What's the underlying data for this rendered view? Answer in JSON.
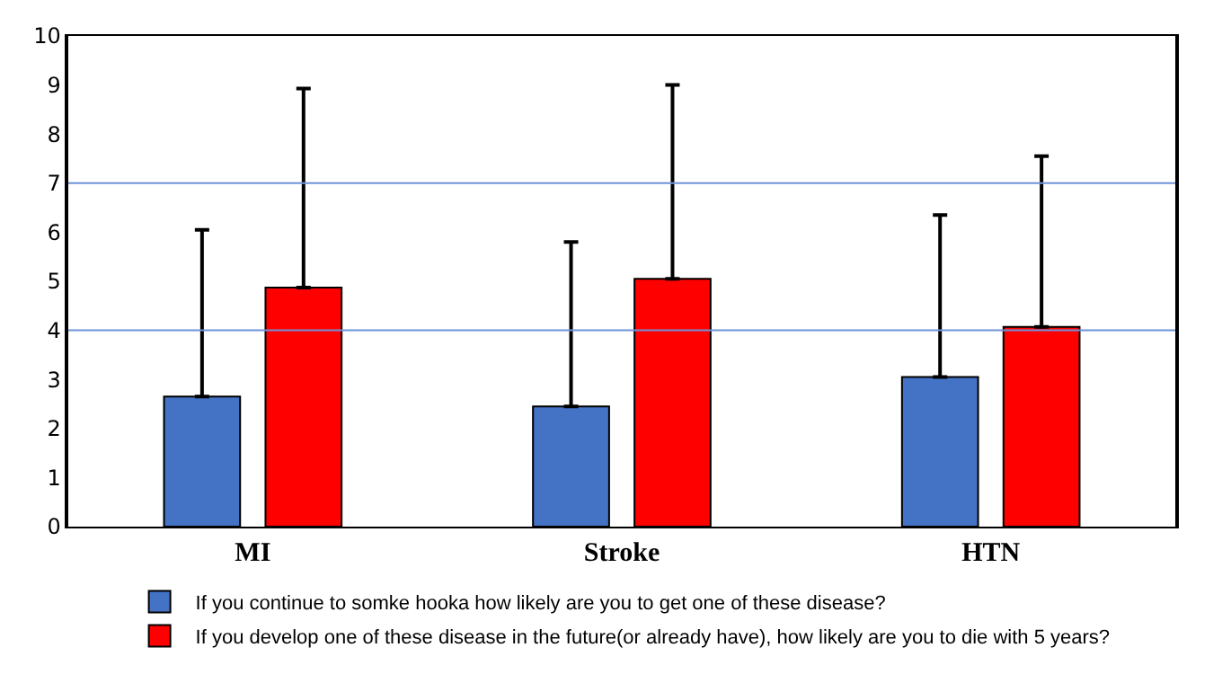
{
  "chart_data": {
    "type": "bar",
    "categories": [
      "MI",
      "Stroke",
      "HTN"
    ],
    "series": [
      {
        "name": "If you continue to somke hooka how likely are you to get one of these disease?",
        "color": "#4472c4",
        "values": [
          2.65,
          2.45,
          3.05
        ],
        "errors": [
          [
            2.65,
            6.05
          ],
          [
            2.45,
            5.8
          ],
          [
            3.05,
            6.35
          ]
        ]
      },
      {
        "name": "If you develop one of these disease in the future(or already have), how likely are you to die with 5 years?",
        "color": "#ff0000",
        "values": [
          4.87,
          5.05,
          4.07
        ],
        "errors": [
          [
            4.87,
            8.93
          ],
          [
            5.05,
            9.0
          ],
          [
            4.07,
            7.55
          ]
        ]
      }
    ],
    "ylim": [
      0,
      10
    ],
    "yticks": [
      0,
      1,
      2,
      3,
      4,
      5,
      6,
      7,
      8,
      9,
      10
    ],
    "grid": false,
    "legend": "bottom",
    "ref_lines": [
      {
        "axis": "y",
        "value": 4,
        "color": "#6f93d8"
      },
      {
        "axis": "y",
        "value": 7,
        "color": "#6f93d8"
      }
    ]
  }
}
